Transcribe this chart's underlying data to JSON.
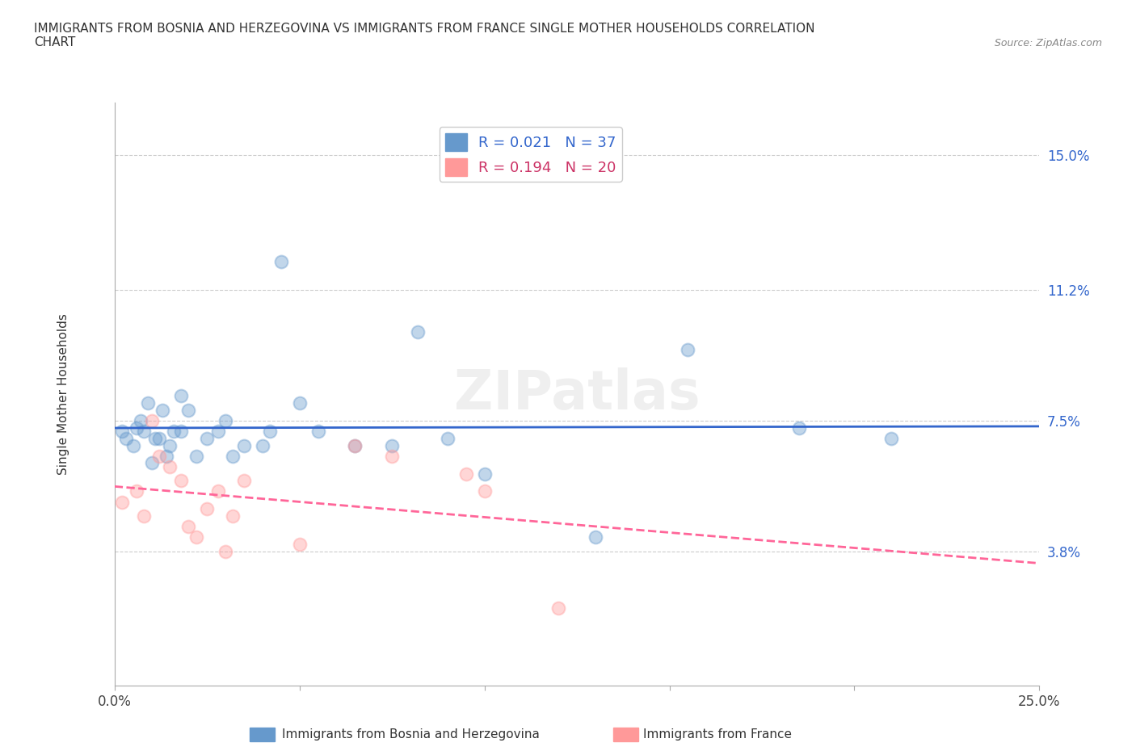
{
  "title": "IMMIGRANTS FROM BOSNIA AND HERZEGOVINA VS IMMIGRANTS FROM FRANCE SINGLE MOTHER HOUSEHOLDS CORRELATION\nCHART",
  "source": "Source: ZipAtlas.com",
  "ylabel": "Single Mother Households",
  "xlim": [
    0.0,
    0.25
  ],
  "ylim": [
    0.0,
    0.165
  ],
  "xticks": [
    0.0,
    0.05,
    0.1,
    0.15,
    0.2,
    0.25
  ],
  "xticklabels": [
    "0.0%",
    "",
    "",
    "",
    "",
    "25.0%"
  ],
  "ytick_vals": [
    0.038,
    0.075,
    0.112,
    0.15
  ],
  "ytick_labels": [
    "3.8%",
    "7.5%",
    "11.2%",
    "15.0%"
  ],
  "blue_R": "0.021",
  "blue_N": "37",
  "pink_R": "0.194",
  "pink_N": "20",
  "blue_color": "#6699CC",
  "pink_color": "#FF9999",
  "blue_line_color": "#3366CC",
  "pink_line_color": "#FF6699",
  "legend_label_blue": "Immigrants from Bosnia and Herzegovina",
  "legend_label_pink": "Immigrants from France",
  "watermark": "ZIPatlas",
  "blue_x": [
    0.002,
    0.003,
    0.005,
    0.006,
    0.007,
    0.008,
    0.009,
    0.01,
    0.011,
    0.012,
    0.013,
    0.014,
    0.015,
    0.016,
    0.018,
    0.018,
    0.02,
    0.022,
    0.025,
    0.028,
    0.03,
    0.032,
    0.035,
    0.04,
    0.042,
    0.045,
    0.05,
    0.055,
    0.065,
    0.075,
    0.082,
    0.09,
    0.1,
    0.13,
    0.155,
    0.185,
    0.21
  ],
  "blue_y": [
    0.072,
    0.07,
    0.068,
    0.073,
    0.075,
    0.072,
    0.08,
    0.063,
    0.07,
    0.07,
    0.078,
    0.065,
    0.068,
    0.072,
    0.072,
    0.082,
    0.078,
    0.065,
    0.07,
    0.072,
    0.075,
    0.065,
    0.068,
    0.068,
    0.072,
    0.12,
    0.08,
    0.072,
    0.068,
    0.068,
    0.1,
    0.07,
    0.06,
    0.042,
    0.095,
    0.073,
    0.07
  ],
  "pink_x": [
    0.002,
    0.006,
    0.008,
    0.01,
    0.012,
    0.015,
    0.018,
    0.02,
    0.022,
    0.025,
    0.028,
    0.03,
    0.032,
    0.035,
    0.05,
    0.065,
    0.075,
    0.095,
    0.1,
    0.12
  ],
  "pink_y": [
    0.052,
    0.055,
    0.048,
    0.075,
    0.065,
    0.062,
    0.058,
    0.045,
    0.042,
    0.05,
    0.055,
    0.038,
    0.048,
    0.058,
    0.04,
    0.068,
    0.065,
    0.06,
    0.055,
    0.022
  ],
  "grid_color": "#CCCCCC",
  "bg_color": "#FFFFFF"
}
